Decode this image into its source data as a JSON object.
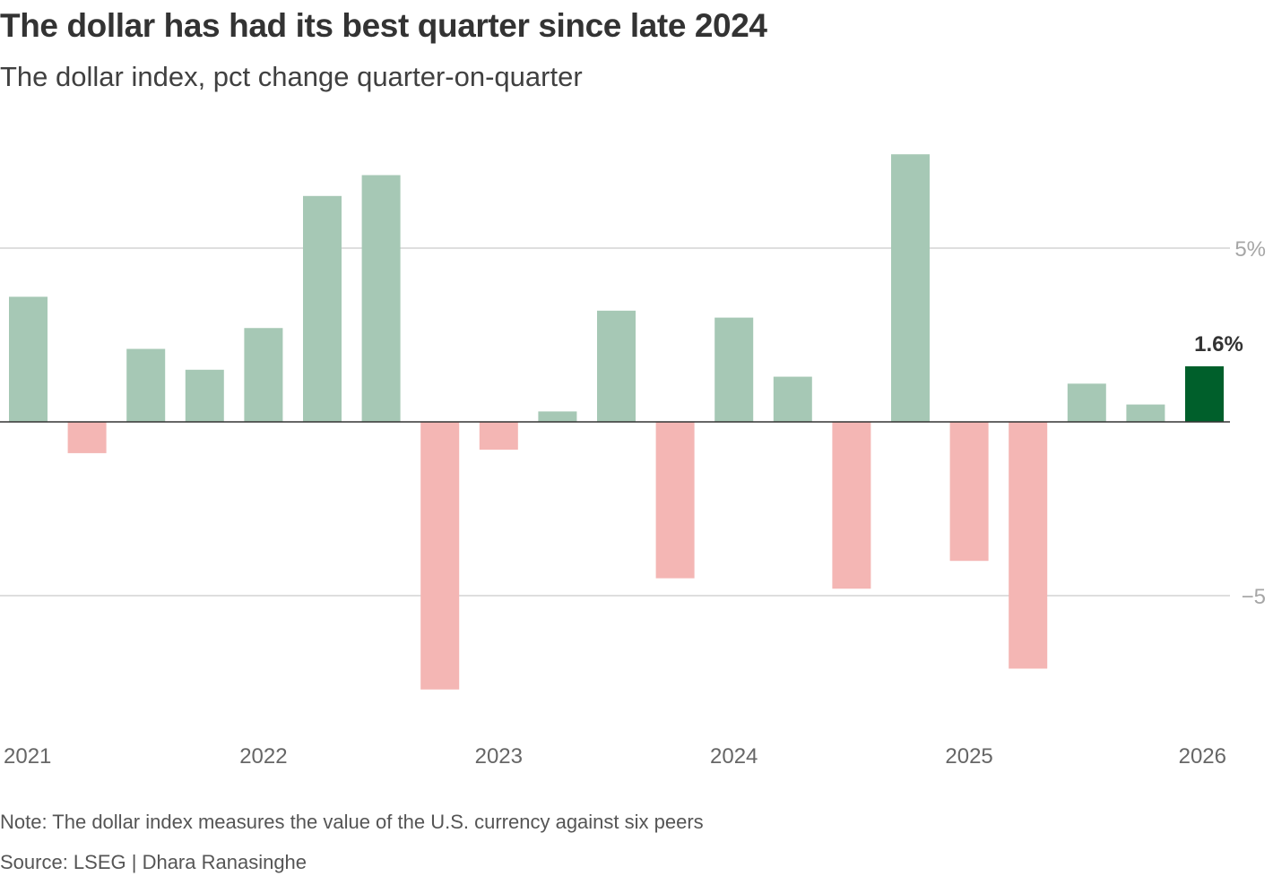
{
  "header": {
    "title": "The dollar has had its best quarter since late 2024",
    "subtitle": "The dollar index, pct change quarter-on-quarter"
  },
  "footer": {
    "note": "Note: The dollar index measures the value of the U.S. currency against six peers",
    "source": "Source: LSEG | Dhara Ranasinghe"
  },
  "colors": {
    "positive": "#a6c8b5",
    "negative": "#f4b6b4",
    "highlight": "#005f2b",
    "gridline": "#d3d3d3",
    "zeroline": "#333333"
  },
  "chart_data": {
    "type": "bar",
    "title": "The dollar has had its best quarter since late 2024",
    "subtitle": "The dollar index, pct change quarter-on-quarter",
    "xlabel": "",
    "ylabel": "",
    "ylim": [
      -8.5,
      8.5
    ],
    "y_ticks": [
      {
        "value": 5,
        "label": "5%"
      },
      {
        "value": -5,
        "label": "−5"
      }
    ],
    "x_ticks": [
      {
        "index": 0,
        "label": "2021"
      },
      {
        "index": 4,
        "label": "2022"
      },
      {
        "index": 8,
        "label": "2023"
      },
      {
        "index": 12,
        "label": "2024"
      },
      {
        "index": 16,
        "label": "2025"
      },
      {
        "index": 20,
        "label": "2026"
      }
    ],
    "categories": [
      "Q1 2021",
      "Q2 2021",
      "Q3 2021",
      "Q4 2021",
      "Q1 2022",
      "Q2 2022",
      "Q3 2022",
      "Q4 2022",
      "Q1 2023",
      "Q2 2023",
      "Q3 2023",
      "Q4 2023",
      "Q1 2024",
      "Q2 2024",
      "Q3 2024",
      "Q4 2024",
      "Q1 2025",
      "Q2 2025",
      "Q3 2025",
      "Q4 2025",
      "Q1 2026"
    ],
    "values": [
      3.6,
      -0.9,
      2.1,
      1.5,
      2.7,
      6.5,
      7.1,
      -7.7,
      -0.8,
      0.3,
      3.2,
      -4.5,
      3.0,
      1.3,
      -4.8,
      7.7,
      -4.0,
      -7.1,
      1.1,
      0.5,
      1.6
    ],
    "highlight_index": 20,
    "data_labels": [
      {
        "index": 20,
        "label": "1.6%"
      }
    ],
    "grid": true,
    "legend": "none"
  }
}
